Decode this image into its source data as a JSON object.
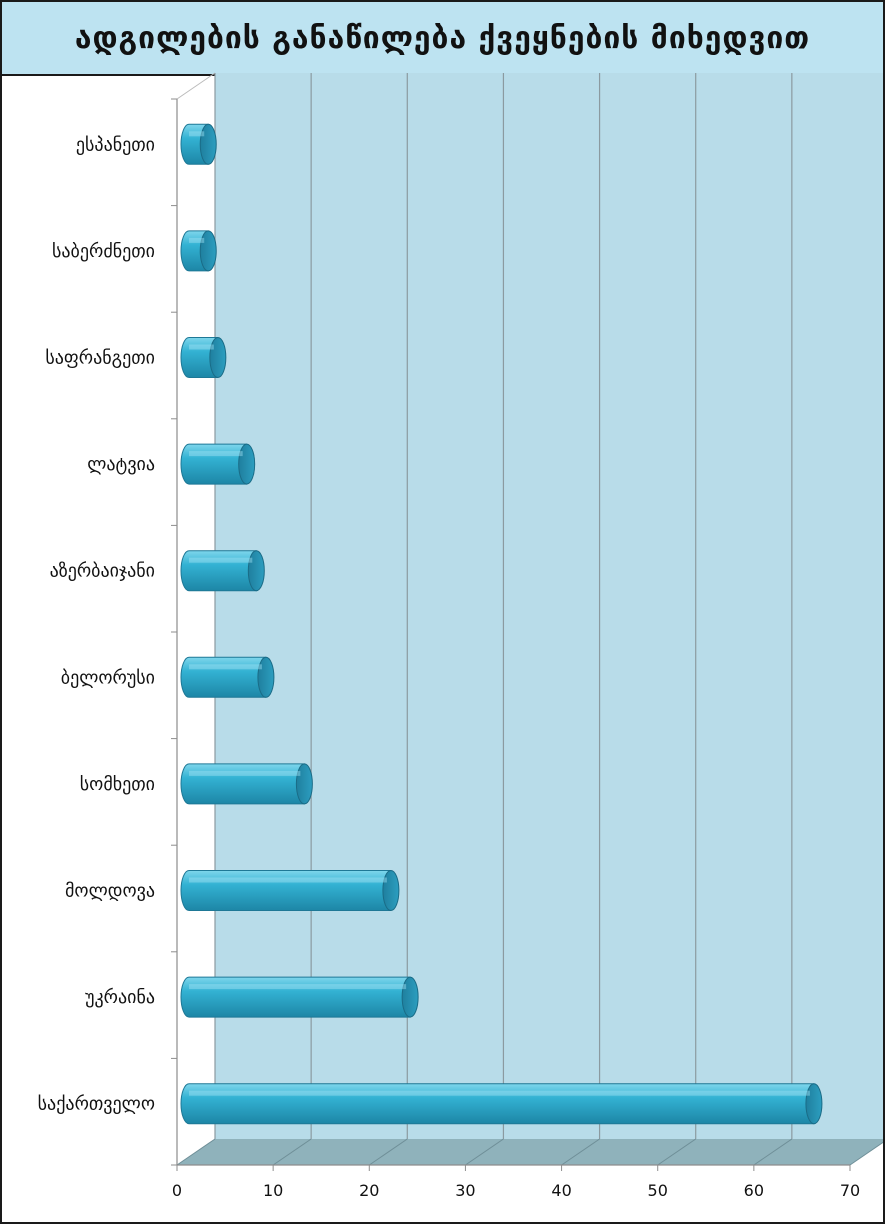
{
  "header": {
    "title": "ადგილების განაწილება ქვეყნების მიხედვით"
  },
  "colors": {
    "wall": "#b8dce9",
    "floor": "#8fb2bb",
    "grid": "#8b9aa0",
    "bar_body": "#33b2d3",
    "bar_cap": "#1f7f9e",
    "title_bg": "#bde3f1"
  },
  "chart_data": {
    "type": "bar",
    "orientation": "horizontal",
    "style": "3d-cylinder",
    "title": "ადგილების განაწილება ქვეყნების მიხედვით",
    "categories": [
      "საქართველო",
      "უკრაინა",
      "მოლდოვა",
      "სომხეთი",
      "ბელორუსი",
      "აზერბაიჯანი",
      "ლატვია",
      "საფრანგეთი",
      "საბერძნეთი",
      "ესპანეთი"
    ],
    "values": [
      65,
      23,
      21,
      12,
      8,
      7,
      6,
      3,
      2,
      2
    ],
    "xticks": [
      "0",
      "10",
      "20",
      "30",
      "40",
      "50",
      "60",
      "70"
    ],
    "xlim": [
      0,
      70
    ],
    "xlabel": "",
    "ylabel": "",
    "grid": true,
    "legend": "none"
  }
}
